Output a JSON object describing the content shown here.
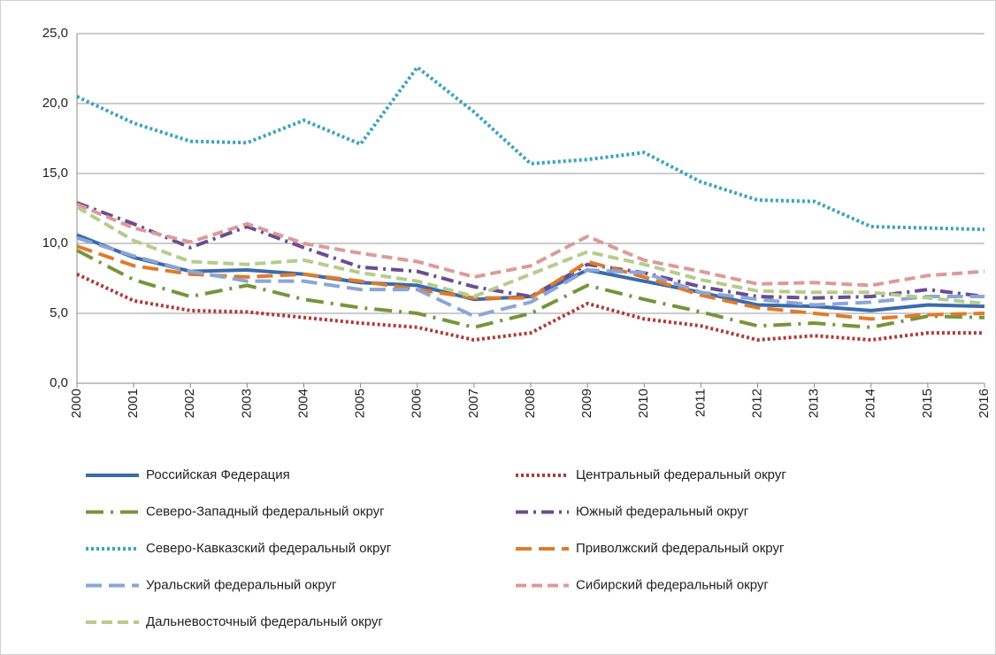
{
  "chart_data": {
    "type": "line",
    "categories": [
      "2000",
      "2001",
      "2002",
      "2003",
      "2004",
      "2005",
      "2006",
      "2007",
      "2008",
      "2009",
      "2010",
      "2011",
      "2012",
      "2013",
      "2014",
      "2015",
      "2016"
    ],
    "ylim": [
      0,
      25
    ],
    "yticks": [
      {
        "value": 0,
        "label": "0,0"
      },
      {
        "value": 5,
        "label": "5,0"
      },
      {
        "value": 10,
        "label": "10,0"
      },
      {
        "value": 15,
        "label": "15,0"
      },
      {
        "value": 20,
        "label": "20,0"
      },
      {
        "value": 25,
        "label": "25,0"
      }
    ],
    "grid": true,
    "legend": "bottom",
    "series": [
      {
        "name": "Российская Федерация",
        "color": "#3b6aad",
        "dash": "solid",
        "values": [
          10.6,
          9.0,
          8.0,
          8.1,
          7.8,
          7.2,
          7.0,
          6.0,
          6.2,
          8.1,
          7.3,
          6.5,
          5.6,
          5.5,
          5.2,
          5.6,
          5.5
        ]
      },
      {
        "name": "Центральный федеральный округ",
        "color": "#b03a37",
        "dash": "dot",
        "values": [
          7.8,
          5.9,
          5.2,
          5.1,
          4.7,
          4.3,
          4.0,
          3.1,
          3.6,
          5.7,
          4.6,
          4.1,
          3.1,
          3.4,
          3.1,
          3.6,
          3.6
        ]
      },
      {
        "name": "Северо-Западный федеральный округ",
        "color": "#76953a",
        "dash": "longdashdot",
        "values": [
          9.5,
          7.4,
          6.2,
          7.0,
          6.0,
          5.4,
          5.0,
          4.0,
          5.0,
          7.0,
          6.0,
          5.1,
          4.1,
          4.3,
          4.0,
          4.8,
          4.7
        ]
      },
      {
        "name": "Южный федеральный округ",
        "color": "#6a4d91",
        "dash": "dashdot",
        "values": [
          12.9,
          11.4,
          9.7,
          11.2,
          9.7,
          8.3,
          8.0,
          6.9,
          6.2,
          8.5,
          7.9,
          6.9,
          6.2,
          6.1,
          6.2,
          6.7,
          6.2
        ]
      },
      {
        "name": "Северо-Кавказский федеральный округ",
        "color": "#3ba3bd",
        "dash": "dot",
        "values": [
          20.5,
          18.6,
          17.3,
          17.2,
          18.8,
          17.1,
          22.6,
          19.4,
          15.7,
          16.0,
          16.5,
          14.4,
          13.1,
          13.0,
          11.2,
          11.1,
          11.0
        ]
      },
      {
        "name": "Приволжский федеральный округ",
        "color": "#e07b2a",
        "dash": "longdash",
        "values": [
          9.8,
          8.4,
          7.8,
          7.6,
          7.8,
          7.3,
          6.7,
          6.1,
          6.1,
          8.7,
          7.6,
          6.3,
          5.4,
          5.0,
          4.6,
          4.9,
          5.0
        ]
      },
      {
        "name": "Уральский федеральный округ",
        "color": "#8aa6d6",
        "dash": "longdash",
        "values": [
          10.4,
          9.1,
          8.0,
          7.3,
          7.3,
          6.7,
          6.7,
          4.8,
          5.8,
          8.1,
          7.9,
          6.5,
          6.0,
          5.6,
          5.8,
          6.2,
          6.2
        ]
      },
      {
        "name": "Сибирский федеральный округ",
        "color": "#dc9a98",
        "dash": "dash",
        "values": [
          12.8,
          11.1,
          10.1,
          11.4,
          10.0,
          9.3,
          8.7,
          7.6,
          8.4,
          10.5,
          8.8,
          8.0,
          7.1,
          7.2,
          7.0,
          7.7,
          8.0
        ]
      },
      {
        "name": "Дальневосточный федеральный округ",
        "color": "#b5cc8c",
        "dash": "dash",
        "values": [
          12.6,
          10.2,
          8.7,
          8.5,
          8.8,
          7.9,
          7.3,
          6.2,
          7.8,
          9.4,
          8.5,
          7.4,
          6.6,
          6.5,
          6.5,
          6.1,
          5.7
        ]
      }
    ]
  }
}
